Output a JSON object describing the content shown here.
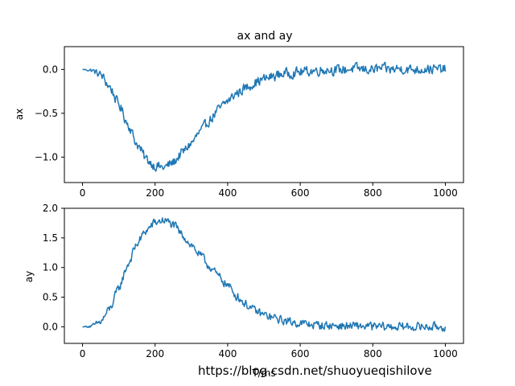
{
  "figure": {
    "watermark": "https://blog.csdn.net/shuoyueqishilove"
  },
  "chart_data": [
    {
      "type": "line",
      "title": "ax and ay",
      "xlabel": "",
      "ylabel": "ax",
      "xlim": [
        -50,
        1050
      ],
      "ylim": [
        -1.29,
        0.26
      ],
      "xticks": [
        0,
        200,
        400,
        600,
        800,
        1000
      ],
      "xtick_labels": [
        "0",
        "200",
        "400",
        "600",
        "800",
        "1000"
      ],
      "yticks": [
        0.0,
        -0.5,
        -1.0
      ],
      "ytick_labels": [
        "0.0",
        "−0.5",
        "−1.0"
      ],
      "grid": false,
      "series": [
        {
          "color": "#1f77b4",
          "x": [
            0,
            25,
            50,
            75,
            100,
            125,
            150,
            175,
            200,
            225,
            250,
            275,
            300,
            325,
            350,
            375,
            400,
            425,
            450,
            475,
            500,
            525,
            550,
            575,
            600,
            625,
            650,
            675,
            700,
            725,
            750,
            775,
            800,
            825,
            850,
            875,
            900,
            925,
            950,
            975,
            1000
          ],
          "y": [
            0.0,
            -0.01,
            -0.06,
            -0.2,
            -0.4,
            -0.62,
            -0.85,
            -1.02,
            -1.1,
            -1.12,
            -1.06,
            -0.95,
            -0.84,
            -0.71,
            -0.58,
            -0.46,
            -0.36,
            -0.27,
            -0.21,
            -0.15,
            -0.11,
            -0.08,
            -0.05,
            -0.04,
            -0.03,
            -0.02,
            -0.01,
            0.0,
            -0.01,
            0.0,
            0.01,
            0.0,
            0.0,
            0.01,
            0.0,
            0.01,
            0.0,
            0.0,
            0.01,
            0.0,
            0.0
          ],
          "noise": 0.08
        }
      ]
    },
    {
      "type": "line",
      "title": "",
      "xlabel": "T/ms",
      "ylabel": "ay",
      "xlim": [
        -50,
        1050
      ],
      "ylim": [
        -0.28,
        2.0
      ],
      "xticks": [
        0,
        200,
        400,
        600,
        800,
        1000
      ],
      "xtick_labels": [
        "0",
        "200",
        "400",
        "600",
        "800",
        "1000"
      ],
      "yticks": [
        2.0,
        1.5,
        1.0,
        0.5,
        0.0
      ],
      "ytick_labels": [
        "2.0",
        "1.5",
        "1.0",
        "0.5",
        "0.0"
      ],
      "grid": false,
      "series": [
        {
          "color": "#1f77b4",
          "x": [
            0,
            25,
            50,
            75,
            100,
            125,
            150,
            175,
            200,
            225,
            250,
            275,
            300,
            325,
            350,
            375,
            400,
            425,
            450,
            475,
            500,
            525,
            550,
            575,
            600,
            625,
            650,
            675,
            700,
            725,
            750,
            775,
            800,
            825,
            850,
            875,
            900,
            925,
            950,
            975,
            1000
          ],
          "y": [
            0.0,
            0.01,
            0.08,
            0.3,
            0.65,
            1.05,
            1.4,
            1.62,
            1.76,
            1.8,
            1.72,
            1.55,
            1.38,
            1.2,
            1.02,
            0.85,
            0.7,
            0.52,
            0.38,
            0.27,
            0.2,
            0.15,
            0.11,
            0.08,
            0.06,
            0.04,
            0.03,
            0.02,
            0.02,
            0.01,
            0.01,
            0.01,
            0.0,
            0.0,
            0.0,
            0.0,
            0.0,
            0.0,
            0.0,
            0.0,
            0.0
          ],
          "noise": 0.1
        }
      ]
    }
  ]
}
